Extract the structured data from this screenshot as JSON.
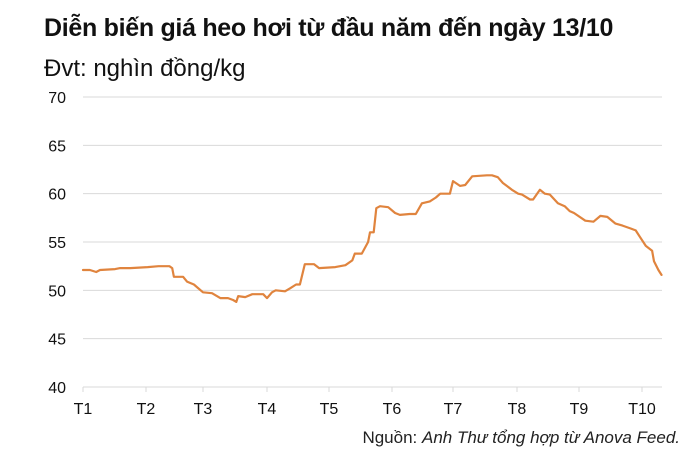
{
  "header": {
    "title": "Diễn biến giá heo hơi từ đầu năm đến ngày 13/10",
    "subtitle": "Đvt: nghìn đồng/kg"
  },
  "footer": {
    "source_label": "Nguồn: ",
    "source_text": "Anh Thư tổng hợp từ Anova Feed."
  },
  "colors": {
    "line": "#E0843E",
    "grid": "#D9D9D9",
    "text": "#111111"
  },
  "chart_data": {
    "type": "line",
    "title": "Diễn biến giá heo hơi từ đầu năm đến ngày 13/10",
    "subtitle": "Đvt: nghìn đồng/kg",
    "xlabel": "",
    "ylabel": "nghìn đồng/kg",
    "ylim": [
      40,
      70
    ],
    "yticks": [
      70,
      65,
      60,
      55,
      50,
      45,
      40
    ],
    "xticks": [
      "T1",
      "T2",
      "T3",
      "T4",
      "T5",
      "T6",
      "T7",
      "T8",
      "T9",
      "T10"
    ],
    "grid": "horizontal",
    "legend": "none",
    "series": [
      {
        "name": "Giá heo hơi",
        "color": "#E0843E",
        "x_month": [
          1.0,
          1.11,
          1.21,
          1.27,
          1.51,
          1.59,
          1.75,
          2.03,
          2.22,
          2.41,
          2.46,
          2.49,
          2.65,
          2.72,
          2.84,
          3.0,
          3.14,
          3.27,
          3.39,
          3.47,
          3.52,
          3.55,
          3.66,
          3.77,
          3.94,
          4.0,
          4.08,
          4.14,
          4.29,
          4.37,
          4.47,
          4.53,
          4.61,
          4.76,
          4.84,
          5.1,
          5.26,
          5.37,
          5.41,
          5.52,
          5.62,
          5.65,
          5.71,
          5.75,
          5.81,
          5.94,
          6.05,
          6.13,
          6.29,
          6.39,
          6.49,
          6.62,
          6.72,
          6.79,
          6.95,
          7.0,
          7.11,
          7.19,
          7.3,
          7.53,
          7.61,
          7.7,
          7.78,
          7.84,
          7.92,
          8.02,
          8.08,
          8.21,
          8.26,
          8.37,
          8.45,
          8.53,
          8.66,
          8.77,
          8.85,
          8.92,
          9.1,
          9.23,
          9.34,
          9.45,
          9.58,
          9.69,
          9.82,
          9.9,
          9.97,
          10.06,
          10.16,
          10.19,
          10.26,
          10.31
        ],
        "values": [
          52.1,
          52.1,
          51.9,
          52.1,
          52.2,
          52.3,
          52.3,
          52.4,
          52.5,
          52.5,
          52.3,
          51.4,
          51.4,
          50.9,
          50.6,
          49.8,
          49.7,
          49.2,
          49.2,
          49.0,
          48.8,
          49.4,
          49.3,
          49.6,
          49.6,
          49.2,
          49.8,
          50.0,
          49.9,
          50.2,
          50.6,
          50.6,
          52.7,
          52.7,
          52.3,
          52.4,
          52.6,
          53.1,
          53.8,
          53.8,
          55.0,
          56.0,
          56.0,
          58.5,
          58.7,
          58.6,
          58.0,
          57.8,
          57.9,
          57.9,
          59.0,
          59.2,
          59.6,
          60.0,
          60.0,
          61.3,
          60.8,
          60.9,
          61.8,
          61.9,
          61.9,
          61.7,
          61.1,
          60.8,
          60.4,
          60.0,
          59.9,
          59.4,
          59.4,
          60.4,
          60.0,
          59.9,
          59.0,
          58.7,
          58.2,
          58.0,
          57.2,
          57.1,
          57.7,
          57.6,
          56.9,
          56.7,
          56.4,
          56.2,
          55.5,
          54.6,
          54.1,
          53.0,
          52.1,
          51.6
        ]
      }
    ]
  }
}
